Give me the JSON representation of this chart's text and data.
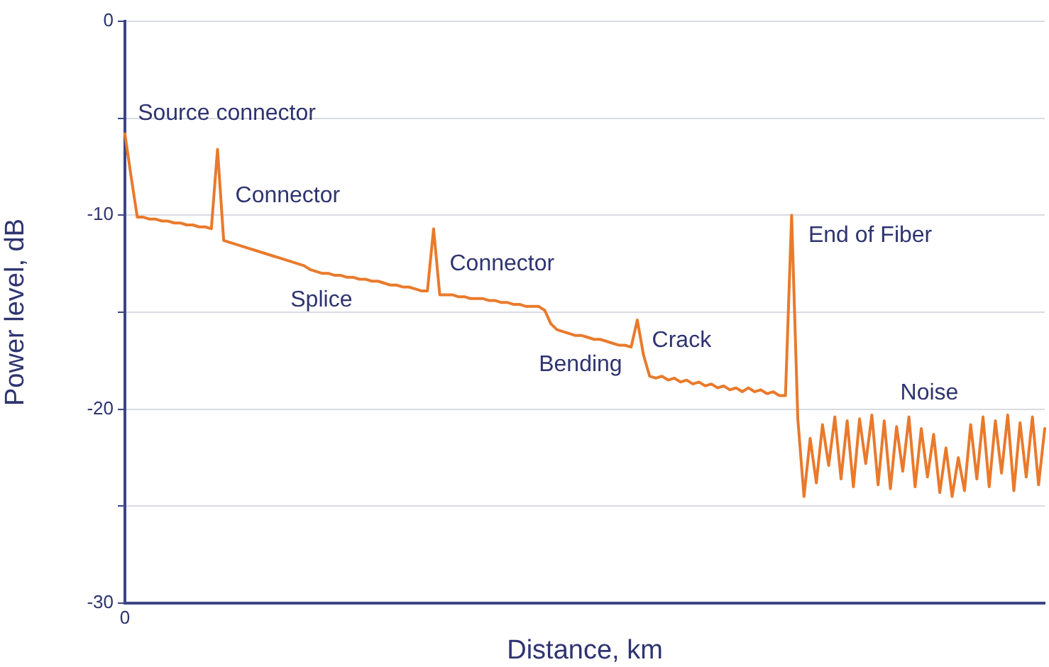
{
  "chart_data": {
    "type": "line",
    "xlabel": "Distance, km",
    "ylabel": "Power level, dB",
    "categories": [
      "0",
      null,
      null,
      null,
      null,
      null,
      null,
      null,
      null,
      null,
      null,
      null,
      null,
      null,
      null,
      null,
      null,
      null,
      null,
      null,
      null,
      null,
      null,
      null,
      null,
      null,
      null,
      null,
      null,
      null,
      null,
      null,
      null,
      null,
      null,
      null,
      null,
      null,
      null,
      null,
      null,
      null,
      null,
      null,
      null,
      null,
      null,
      null,
      null,
      null,
      null,
      null,
      null,
      null,
      null,
      null,
      null,
      null,
      null,
      null,
      null,
      null,
      null,
      null,
      null,
      null,
      null,
      null,
      null,
      null,
      null,
      null,
      null,
      null,
      null,
      null,
      null,
      null,
      null,
      null,
      null,
      null,
      null,
      null,
      null,
      null,
      null,
      null,
      null,
      null,
      null,
      null,
      null,
      null,
      null,
      null,
      null,
      null,
      null,
      null,
      null,
      null,
      null,
      null,
      null,
      null,
      null,
      null,
      null,
      null,
      null,
      null,
      null,
      null,
      null,
      null,
      null,
      null,
      null,
      null,
      null,
      null,
      null,
      null,
      null,
      null,
      null,
      null,
      null,
      null,
      null,
      null,
      null,
      null,
      null,
      null,
      null,
      null,
      null,
      null,
      null,
      null,
      null,
      null,
      null,
      null,
      null,
      null,
      null,
      null
    ],
    "series": [
      {
        "color": "#e97a2c",
        "values": [
          -5.8,
          -8.0,
          -10.1,
          -10.1,
          -10.2,
          -10.2,
          -10.3,
          -10.3,
          -10.4,
          -10.4,
          -10.5,
          -10.5,
          -10.6,
          -10.6,
          -10.7,
          -6.6,
          -11.3,
          -11.4,
          -11.5,
          -11.6,
          -11.7,
          -11.8,
          -11.9,
          -12.0,
          -12.1,
          -12.2,
          -12.3,
          -12.4,
          -12.5,
          -12.6,
          -12.8,
          -12.9,
          -13.0,
          -13.0,
          -13.1,
          -13.1,
          -13.2,
          -13.2,
          -13.3,
          -13.3,
          -13.4,
          -13.4,
          -13.5,
          -13.6,
          -13.6,
          -13.7,
          -13.7,
          -13.8,
          -13.9,
          -13.9,
          -10.7,
          -14.1,
          -14.1,
          -14.1,
          -14.2,
          -14.2,
          -14.3,
          -14.3,
          -14.3,
          -14.4,
          -14.4,
          -14.5,
          -14.5,
          -14.6,
          -14.6,
          -14.7,
          -14.7,
          -14.7,
          -14.9,
          -15.6,
          -15.9,
          -16.0,
          -16.1,
          -16.2,
          -16.2,
          -16.3,
          -16.4,
          -16.4,
          -16.5,
          -16.6,
          -16.7,
          -16.7,
          -16.8,
          -15.4,
          -17.2,
          -18.3,
          -18.4,
          -18.3,
          -18.5,
          -18.4,
          -18.6,
          -18.5,
          -18.7,
          -18.6,
          -18.8,
          -18.7,
          -18.9,
          -18.8,
          -19.0,
          -18.9,
          -19.1,
          -18.9,
          -19.1,
          -19.0,
          -19.2,
          -19.1,
          -19.3,
          -19.3,
          -10.0,
          -20.5,
          -24.5,
          -21.5,
          -23.8,
          -20.8,
          -22.9,
          -20.4,
          -23.6,
          -20.6,
          -24.0,
          -20.5,
          -22.8,
          -20.3,
          -23.9,
          -20.6,
          -24.1,
          -20.9,
          -23.2,
          -20.4,
          -24.0,
          -21.0,
          -23.5,
          -21.3,
          -24.3,
          -22.0,
          -24.5,
          -22.5,
          -24.2,
          -20.8,
          -23.6,
          -20.4,
          -24.0,
          -20.6,
          -23.3,
          -20.3,
          -24.2,
          -20.7,
          -23.5,
          -20.4,
          -23.9,
          -21.0
        ]
      }
    ],
    "ylim": [
      -30,
      0
    ],
    "yticks": [
      0,
      {
        "value": -5,
        "label": null
      },
      -10,
      {
        "value": -15,
        "label": null
      },
      -20,
      {
        "value": -25,
        "label": null
      },
      -30
    ],
    "grid": "y",
    "legend": false,
    "marker": "none",
    "line_style": "solid",
    "annotations": [
      "Source connector",
      "Connector",
      "Splice",
      "Connector",
      "Bending",
      "Crack",
      "End of Fiber",
      "Noise"
    ]
  }
}
